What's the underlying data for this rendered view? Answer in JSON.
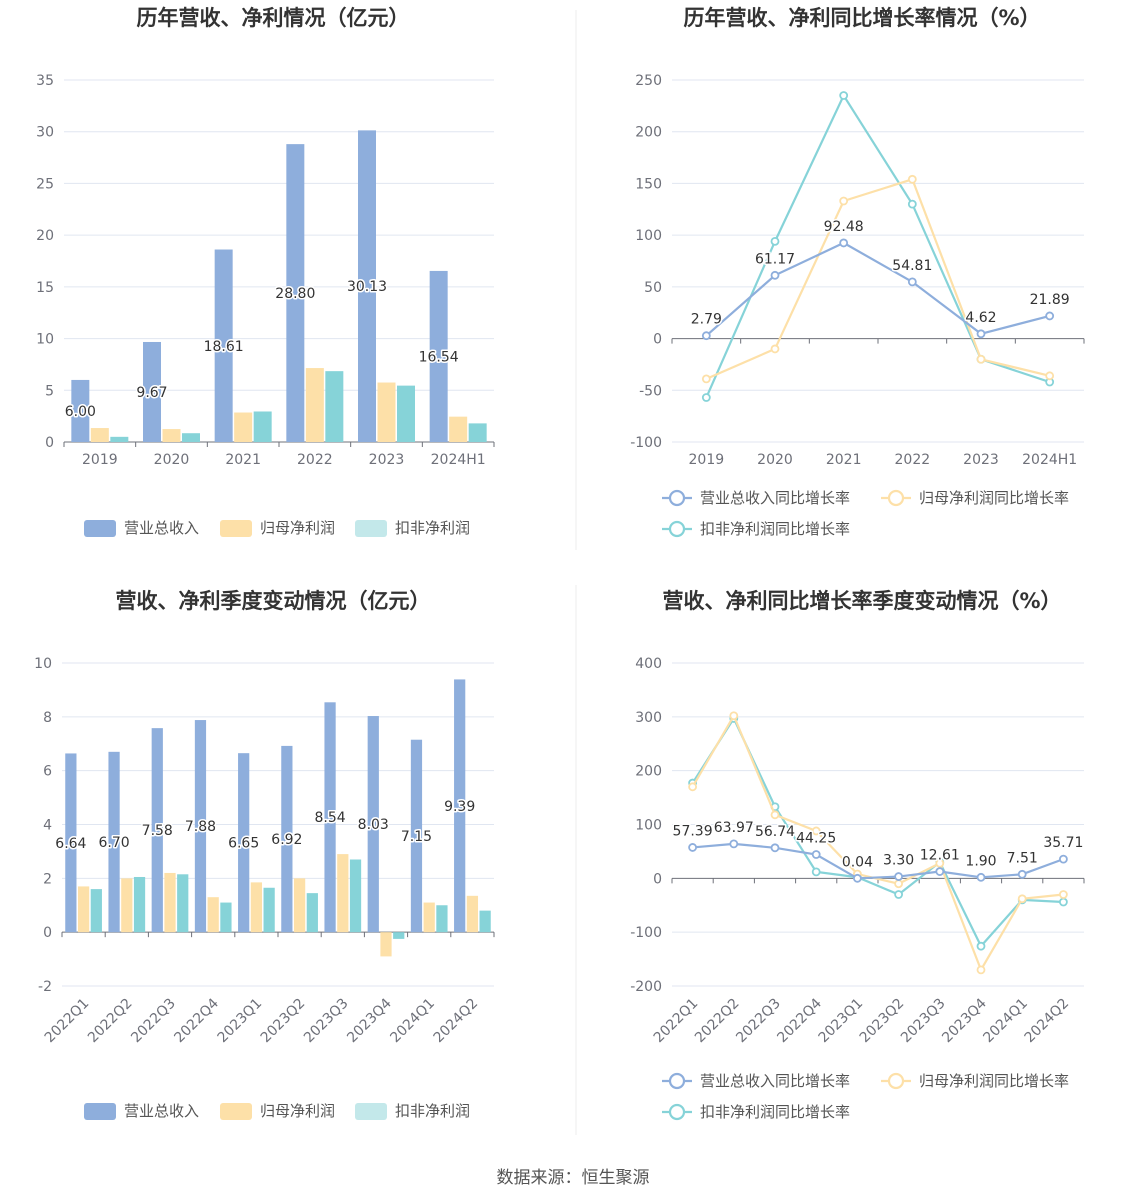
{
  "colors": {
    "revenue": "#8eaedc",
    "net": "#fde0a8",
    "deducted": "#86d3d8"
  },
  "legend_bar": [
    "营业总收入",
    "归母净利润",
    "扣非净利润"
  ],
  "legend_line": [
    "营业总收入同比增长率",
    "归母净利润同比增长率",
    "扣非净利润同比增长率"
  ],
  "source": "数据来源：恒生聚源",
  "chart_data": [
    {
      "id": "annual-bar",
      "type": "bar",
      "title": "历年营收、净利情况（亿元）",
      "categories": [
        "2019",
        "2020",
        "2021",
        "2022",
        "2023",
        "2024H1"
      ],
      "ylim": [
        0,
        35
      ],
      "yticks": [
        0,
        5,
        10,
        15,
        20,
        25,
        30,
        35
      ],
      "label_series": 0,
      "series": [
        {
          "name": "营业总收入",
          "values": [
            6.0,
            9.67,
            18.61,
            28.8,
            30.13,
            16.54
          ]
        },
        {
          "name": "归母净利润",
          "values": [
            1.35,
            1.25,
            2.85,
            7.15,
            5.75,
            2.45
          ]
        },
        {
          "name": "扣非净利润",
          "values": [
            0.5,
            0.85,
            2.95,
            6.85,
            5.45,
            1.8
          ]
        }
      ]
    },
    {
      "id": "annual-line",
      "type": "line",
      "title": "历年营收、净利同比增长率情况（%）",
      "categories": [
        "2019",
        "2020",
        "2021",
        "2022",
        "2023",
        "2024H1"
      ],
      "ylim": [
        -100,
        250
      ],
      "yticks": [
        -100,
        -50,
        0,
        50,
        100,
        150,
        200,
        250
      ],
      "label_series": 0,
      "series": [
        {
          "name": "营业总收入同比增长率",
          "values": [
            2.79,
            61.17,
            92.48,
            54.81,
            4.62,
            21.89
          ]
        },
        {
          "name": "归母净利润同比增长率",
          "values": [
            -39,
            -10,
            133,
            154,
            -20,
            -36
          ]
        },
        {
          "name": "扣非净利润同比增长率",
          "values": [
            -57,
            94,
            235,
            130,
            -20,
            -42
          ]
        }
      ]
    },
    {
      "id": "quarter-bar",
      "type": "bar",
      "title": "营收、净利季度变动情况（亿元）",
      "categories": [
        "2022Q1",
        "2022Q2",
        "2022Q3",
        "2022Q4",
        "2023Q1",
        "2023Q2",
        "2023Q3",
        "2023Q4",
        "2024Q1",
        "2024Q2"
      ],
      "ylim": [
        -2,
        10
      ],
      "yticks": [
        -2,
        0,
        2,
        4,
        6,
        8,
        10
      ],
      "label_series": 0,
      "series": [
        {
          "name": "营业总收入",
          "values": [
            6.64,
            6.7,
            7.58,
            7.88,
            6.65,
            6.92,
            8.54,
            8.03,
            7.15,
            9.39
          ]
        },
        {
          "name": "归母净利润",
          "values": [
            1.7,
            2.0,
            2.2,
            1.3,
            1.85,
            2.0,
            2.9,
            -0.9,
            1.1,
            1.35
          ]
        },
        {
          "name": "扣非净利润",
          "values": [
            1.6,
            2.05,
            2.15,
            1.1,
            1.65,
            1.45,
            2.7,
            -0.25,
            1.0,
            0.8
          ]
        }
      ]
    },
    {
      "id": "quarter-line",
      "type": "line",
      "title": "营收、净利同比增长率季度变动情况（%）",
      "categories": [
        "2022Q1",
        "2022Q2",
        "2022Q3",
        "2022Q4",
        "2023Q1",
        "2023Q2",
        "2023Q3",
        "2023Q4",
        "2024Q1",
        "2024Q2"
      ],
      "ylim": [
        -200,
        400
      ],
      "yticks": [
        -200,
        -100,
        0,
        100,
        200,
        300,
        400
      ],
      "label_series": 0,
      "series": [
        {
          "name": "营业总收入同比增长率",
          "values": [
            57.39,
            63.97,
            56.74,
            44.25,
            0.04,
            3.3,
            12.61,
            1.9,
            7.51,
            35.71
          ]
        },
        {
          "name": "归母净利润同比增长率",
          "values": [
            170,
            302,
            118,
            88,
            8,
            -10,
            28,
            -170,
            -38,
            -30
          ]
        },
        {
          "name": "扣非净利润同比增长率",
          "values": [
            177,
            297,
            133,
            12,
            2,
            -30,
            30,
            -126,
            -40,
            -44
          ]
        }
      ]
    }
  ]
}
